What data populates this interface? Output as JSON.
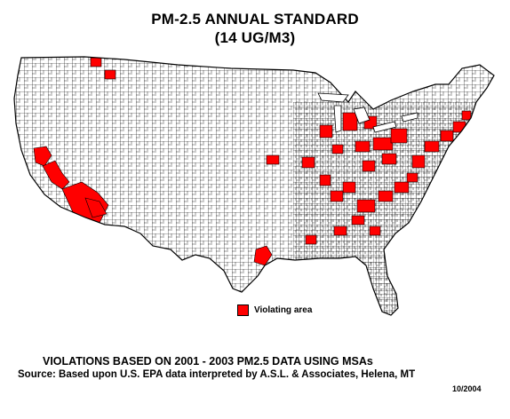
{
  "title": {
    "line1": "PM-2.5 ANNUAL STANDARD",
    "line2": "(14 UG/M3)"
  },
  "legend": {
    "label": "Violating area",
    "color": "#ff0000"
  },
  "footer": {
    "line1": "VIOLATIONS BASED ON 2001 - 2003 PM2.5 DATA USING MSAs",
    "line2": "Source:  Based upon U.S. EPA data interpreted by A.S.L. & Associates, Helena, MT",
    "date": "10/2004"
  },
  "map": {
    "region": "Contiguous United States counties",
    "violation_color": "#ff0000",
    "base_color": "#ffffff",
    "border_color": "#000000"
  }
}
